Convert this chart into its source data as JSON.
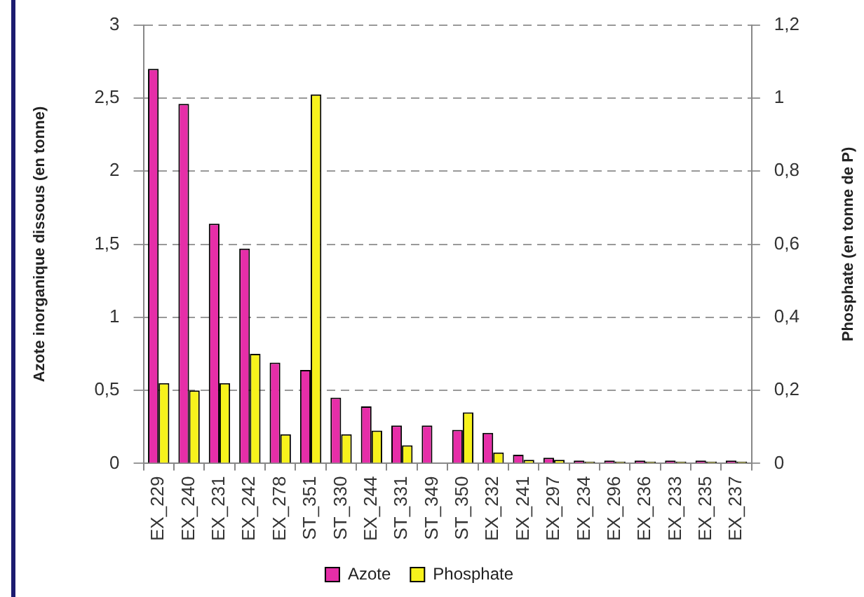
{
  "chart_data": {
    "type": "bar",
    "ylabel": "Azote inorganique dissous (en tonne)",
    "y2label": "Phosphate (en tonne de P)",
    "categories": [
      "EX_229",
      "EX_240",
      "EX_231",
      "EX_242",
      "EX_278",
      "ST_351",
      "ST_330",
      "EX_244",
      "ST_331",
      "ST_349",
      "ST_350",
      "EX_232",
      "EX_241",
      "EX_297",
      "EX_234",
      "EX_296",
      "EX_236",
      "EX_233",
      "EX_235",
      "EX_237"
    ],
    "series": [
      {
        "name": "Azote",
        "color": "#e62ea8",
        "values": [
          2.7,
          2.46,
          1.64,
          1.47,
          0.69,
          0.64,
          0.45,
          0.39,
          0.26,
          0.26,
          0.23,
          0.21,
          0.06,
          0.04,
          0.02,
          0.02,
          0.02,
          0.02,
          0.02,
          0.02
        ]
      },
      {
        "name": "Phosphate",
        "color": "#f7f21c",
        "axis": "y2",
        "values": [
          0.22,
          0.2,
          0.22,
          0.3,
          0.08,
          1.01,
          0.08,
          0.09,
          0.05,
          null,
          0.14,
          0.03,
          0.01,
          0.01,
          0.005,
          0.005,
          0.005,
          0.005,
          0.005,
          0.005
        ]
      }
    ],
    "ylim": [
      0,
      3
    ],
    "yticks": [
      0,
      {
        "value": 0.5,
        "label": "0,5"
      },
      1,
      {
        "value": 1.5,
        "label": "1,5"
      },
      2,
      {
        "value": 2.5,
        "label": "2,5"
      },
      3
    ],
    "y2lim": [
      0,
      1.2
    ],
    "y2ticks": [
      0,
      {
        "value": 0.2,
        "label": "0,2"
      },
      {
        "value": 0.4,
        "label": "0,4"
      },
      {
        "value": 0.6,
        "label": "0,6"
      },
      {
        "value": 0.8,
        "label": "0,8"
      },
      1,
      {
        "value": 1.2,
        "label": "1,2"
      }
    ],
    "grid": "y",
    "legend": "bottom"
  }
}
